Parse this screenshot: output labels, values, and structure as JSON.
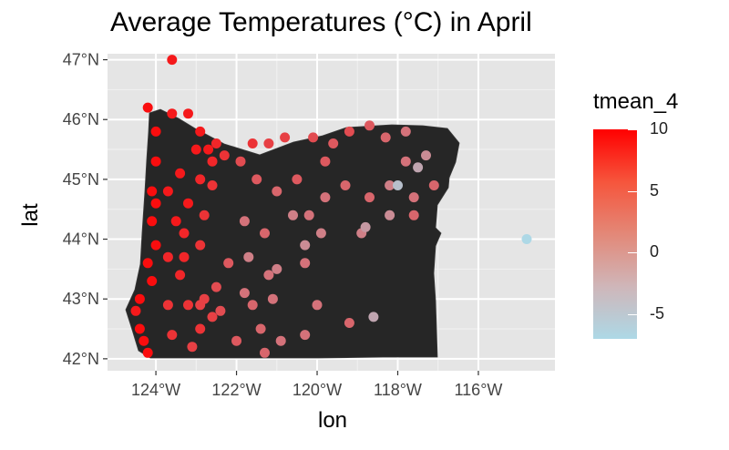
{
  "chart_data": {
    "type": "scatter",
    "title": "Average Temperatures (°C) in April",
    "xlabel": "lon",
    "ylabel": "lat",
    "xlim": [
      -125.2,
      -114.1
    ],
    "ylim": [
      41.8,
      47.1
    ],
    "x_ticks": [
      -124,
      -122,
      -120,
      -118,
      -116
    ],
    "x_tick_labels": [
      "124°W",
      "122°W",
      "120°W",
      "118°W",
      "116°W"
    ],
    "y_ticks": [
      42,
      43,
      44,
      45,
      46,
      47
    ],
    "y_tick_labels": [
      "42°N",
      "43°N",
      "44°N",
      "45°N",
      "46°N",
      "47°N"
    ],
    "grid": true,
    "panel_background": "#e5e5e5",
    "basemap_fill": "#262626",
    "legend": {
      "title": "tmean_4",
      "placement": "right",
      "ticks": [
        10,
        5,
        0,
        -5
      ],
      "tick_labels": [
        "10",
        "5",
        "0",
        "-5"
      ],
      "range": [
        -7,
        10
      ],
      "colors": [
        "#add8e6",
        "#ff0000"
      ]
    },
    "series": [
      {
        "points": [
          [
            -123.6,
            47.0,
            8
          ],
          [
            -124.2,
            46.2,
            9
          ],
          [
            -124.0,
            45.8,
            9
          ],
          [
            -124.0,
            45.3,
            9
          ],
          [
            -124.1,
            44.8,
            9
          ],
          [
            -124.1,
            44.3,
            9
          ],
          [
            -124.2,
            43.6,
            9
          ],
          [
            -124.4,
            43.0,
            9
          ],
          [
            -124.4,
            42.5,
            9
          ],
          [
            -124.2,
            42.1,
            9
          ],
          [
            -124.5,
            42.8,
            8
          ],
          [
            -124.0,
            44.6,
            9
          ],
          [
            -124.0,
            43.9,
            9
          ],
          [
            -124.1,
            43.3,
            9
          ],
          [
            -124.3,
            42.3,
            9
          ],
          [
            -123.6,
            46.1,
            8
          ],
          [
            -123.2,
            46.1,
            8
          ],
          [
            -122.9,
            45.8,
            8
          ],
          [
            -123.0,
            45.5,
            8
          ],
          [
            -122.7,
            45.5,
            8
          ],
          [
            -122.6,
            45.3,
            7
          ],
          [
            -122.9,
            45.0,
            7
          ],
          [
            -123.2,
            44.6,
            8
          ],
          [
            -123.3,
            44.1,
            7
          ],
          [
            -122.9,
            43.9,
            6
          ],
          [
            -123.4,
            43.4,
            7
          ],
          [
            -123.2,
            42.9,
            6
          ],
          [
            -122.9,
            42.5,
            6
          ],
          [
            -123.6,
            42.4,
            6
          ],
          [
            -123.1,
            42.2,
            5
          ],
          [
            -123.4,
            45.1,
            8
          ],
          [
            -122.5,
            45.6,
            7
          ],
          [
            -122.3,
            45.4,
            6
          ],
          [
            -122.6,
            44.9,
            6
          ],
          [
            -122.8,
            44.4,
            6
          ],
          [
            -123.7,
            44.8,
            8
          ],
          [
            -123.5,
            44.3,
            8
          ],
          [
            -123.7,
            43.7,
            7
          ],
          [
            -122.5,
            43.2,
            4
          ],
          [
            -122.2,
            43.6,
            3
          ],
          [
            -121.6,
            45.6,
            6
          ],
          [
            -121.2,
            45.6,
            5
          ],
          [
            -120.8,
            45.7,
            5
          ],
          [
            -121.9,
            45.3,
            4
          ],
          [
            -121.5,
            45.0,
            3
          ],
          [
            -121.8,
            44.3,
            1
          ],
          [
            -121.3,
            44.1,
            2
          ],
          [
            -121.7,
            43.7,
            0
          ],
          [
            -121.2,
            43.4,
            1
          ],
          [
            -121.8,
            43.1,
            1
          ],
          [
            -121.4,
            42.5,
            2
          ],
          [
            -122.0,
            42.3,
            3
          ],
          [
            -120.9,
            42.3,
            1
          ],
          [
            -121.0,
            44.8,
            2
          ],
          [
            -120.6,
            44.4,
            0
          ],
          [
            -120.1,
            45.7,
            4
          ],
          [
            -119.6,
            45.6,
            3
          ],
          [
            -119.2,
            45.8,
            4
          ],
          [
            -118.7,
            45.9,
            3
          ],
          [
            -118.3,
            45.7,
            2
          ],
          [
            -117.8,
            45.8,
            1
          ],
          [
            -117.3,
            45.4,
            -1
          ],
          [
            -117.5,
            45.2,
            -3
          ],
          [
            -117.1,
            44.9,
            2
          ],
          [
            -117.6,
            44.7,
            1
          ],
          [
            -118.2,
            44.9,
            0
          ],
          [
            -118.7,
            44.7,
            2
          ],
          [
            -119.3,
            44.9,
            2
          ],
          [
            -119.8,
            44.7,
            1
          ],
          [
            -120.2,
            44.4,
            1
          ],
          [
            -119.9,
            44.1,
            0
          ],
          [
            -120.3,
            43.9,
            -1
          ],
          [
            -121.0,
            43.5,
            0
          ],
          [
            -120.0,
            42.9,
            1
          ],
          [
            -120.3,
            42.4,
            1
          ],
          [
            -119.2,
            42.6,
            2
          ],
          [
            -118.6,
            42.7,
            -3
          ],
          [
            -118.9,
            44.1,
            0
          ],
          [
            -118.2,
            44.4,
            -1
          ],
          [
            -118.8,
            44.2,
            -2
          ],
          [
            -117.6,
            44.4,
            2
          ],
          [
            -118.0,
            44.9,
            -5
          ],
          [
            -117.8,
            45.3,
            1
          ],
          [
            -119.8,
            45.3,
            3
          ],
          [
            -120.5,
            45.0,
            3
          ],
          [
            -120.3,
            43.6,
            1
          ],
          [
            -121.1,
            43.0,
            1
          ],
          [
            -122.6,
            42.7,
            5
          ],
          [
            -122.9,
            42.9,
            5
          ],
          [
            -123.7,
            42.9,
            6
          ],
          [
            -123.3,
            43.7,
            7
          ],
          [
            -122.8,
            43.0,
            5
          ],
          [
            -122.4,
            42.8,
            4
          ],
          [
            -121.6,
            42.9,
            2
          ],
          [
            -121.3,
            42.1,
            2
          ],
          [
            -114.8,
            44.0,
            -7
          ]
        ]
      }
    ]
  }
}
